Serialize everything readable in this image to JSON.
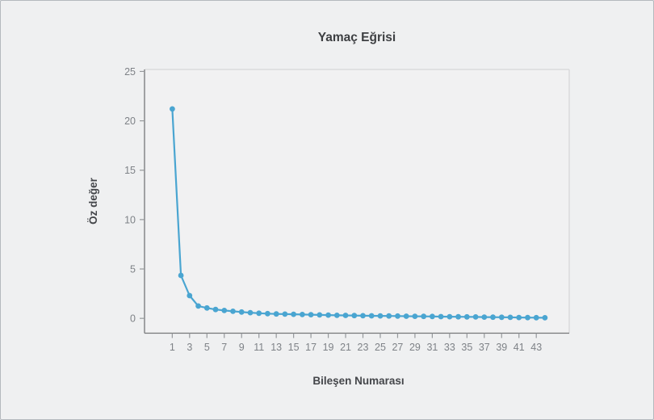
{
  "window": {
    "background_color": "#eff0f1",
    "frame_border_color": "#b4b9be"
  },
  "chart_data": {
    "type": "line",
    "title": "Yamaç Eğrisi",
    "xlabel": "Bileşen Numarası",
    "ylabel": "Öz değer",
    "legend": "none",
    "grid": false,
    "x": [
      1,
      2,
      3,
      4,
      5,
      6,
      7,
      8,
      9,
      10,
      11,
      12,
      13,
      14,
      15,
      16,
      17,
      18,
      19,
      20,
      21,
      22,
      23,
      24,
      25,
      26,
      27,
      28,
      29,
      30,
      31,
      32,
      33,
      34,
      35,
      36,
      37,
      38,
      39,
      40,
      41,
      42,
      43,
      44
    ],
    "values": [
      21.2,
      4.35,
      2.3,
      1.25,
      1.05,
      0.9,
      0.8,
      0.72,
      0.64,
      0.58,
      0.52,
      0.48,
      0.45,
      0.43,
      0.41,
      0.39,
      0.37,
      0.35,
      0.33,
      0.31,
      0.3,
      0.28,
      0.27,
      0.26,
      0.25,
      0.24,
      0.23,
      0.22,
      0.21,
      0.2,
      0.19,
      0.18,
      0.17,
      0.16,
      0.15,
      0.14,
      0.13,
      0.12,
      0.11,
      0.1,
      0.09,
      0.08,
      0.07,
      0.06
    ],
    "x_ticks": [
      1,
      3,
      5,
      7,
      9,
      11,
      13,
      15,
      17,
      19,
      21,
      23,
      25,
      27,
      29,
      31,
      33,
      35,
      37,
      39,
      41,
      43
    ],
    "y_ticks": [
      0,
      5,
      10,
      15,
      20,
      25
    ],
    "xlim": [
      -2.2,
      46.8
    ],
    "ylim": [
      -1.5,
      25.2
    ],
    "line_color": "#4AA5D1",
    "marker_color": "#4AA5D1",
    "plot_background": "#f1f1f2",
    "axis_color": "#757779",
    "tick_color": "#95989b",
    "plot_border_color": "#d7d8d9"
  }
}
